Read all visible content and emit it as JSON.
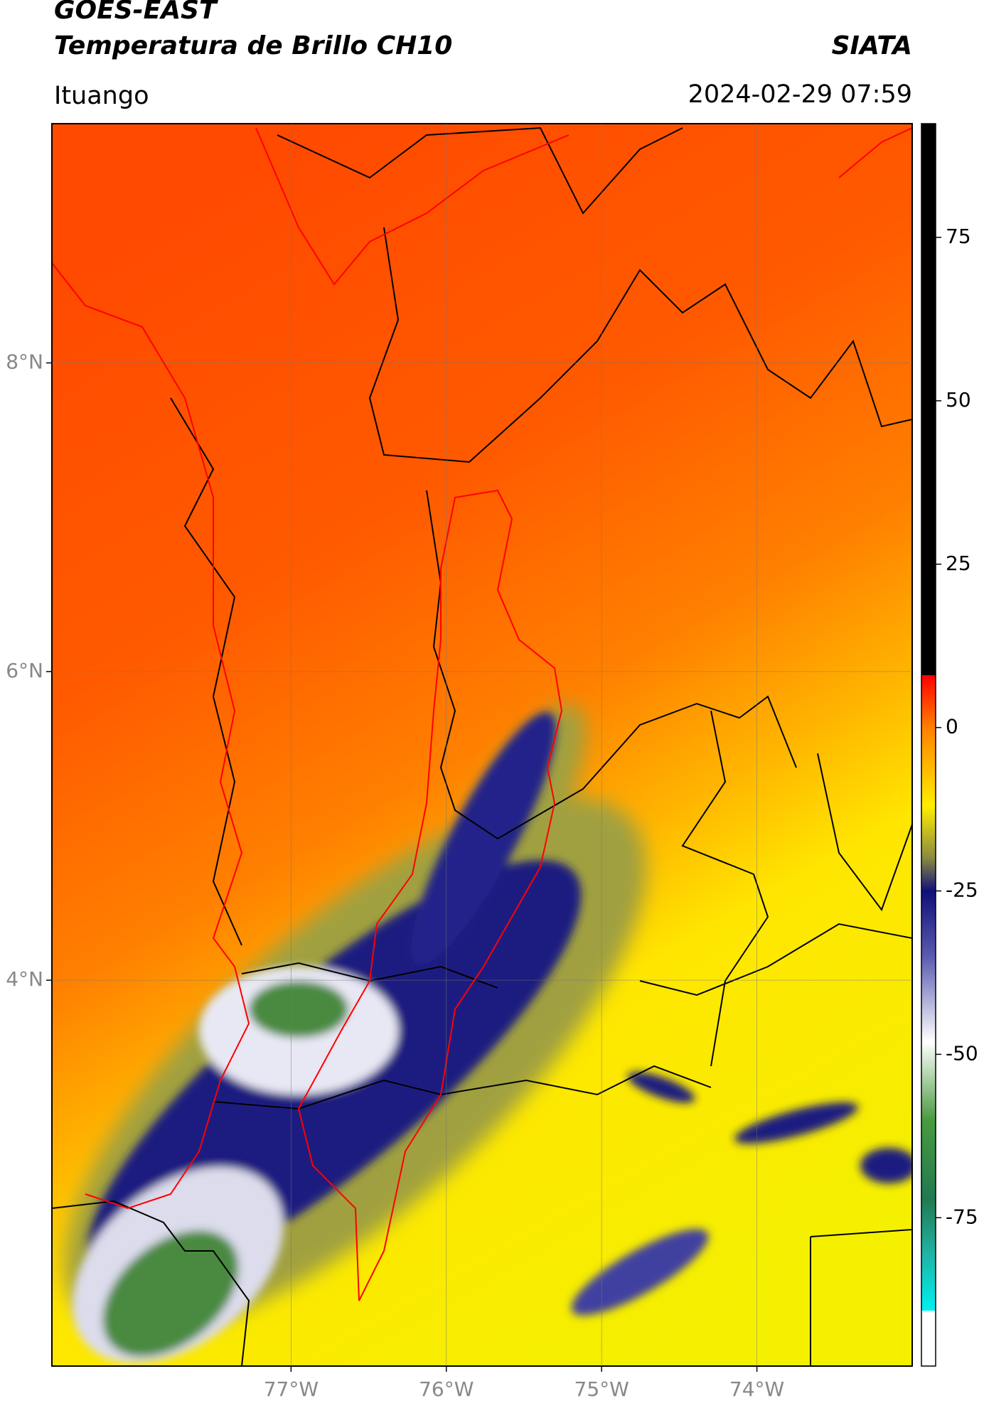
{
  "header": {
    "title": "GOES-EAST",
    "subtitle": "Temperatura de Brillo CH10",
    "org": "SIATA",
    "location": "Ituango",
    "datetime": "2024-02-29 07:59"
  },
  "chart_data": {
    "type": "map",
    "xlim": [
      -78.54,
      -73.0
    ],
    "ylim": [
      1.5,
      9.55
    ],
    "xticks": [
      {
        "value": -77,
        "label": "77°W"
      },
      {
        "value": -76,
        "label": "76°W"
      },
      {
        "value": -75,
        "label": "75°W"
      },
      {
        "value": -74,
        "label": "74°W"
      }
    ],
    "yticks": [
      {
        "value": 4,
        "label": "4°N"
      },
      {
        "value": 6,
        "label": "6°N"
      },
      {
        "value": 8,
        "label": "8°N"
      }
    ],
    "grid": true,
    "clim": [
      -97.7,
      92.4
    ],
    "cticks": [
      -75,
      -50,
      -25,
      0,
      25,
      50,
      75
    ]
  }
}
